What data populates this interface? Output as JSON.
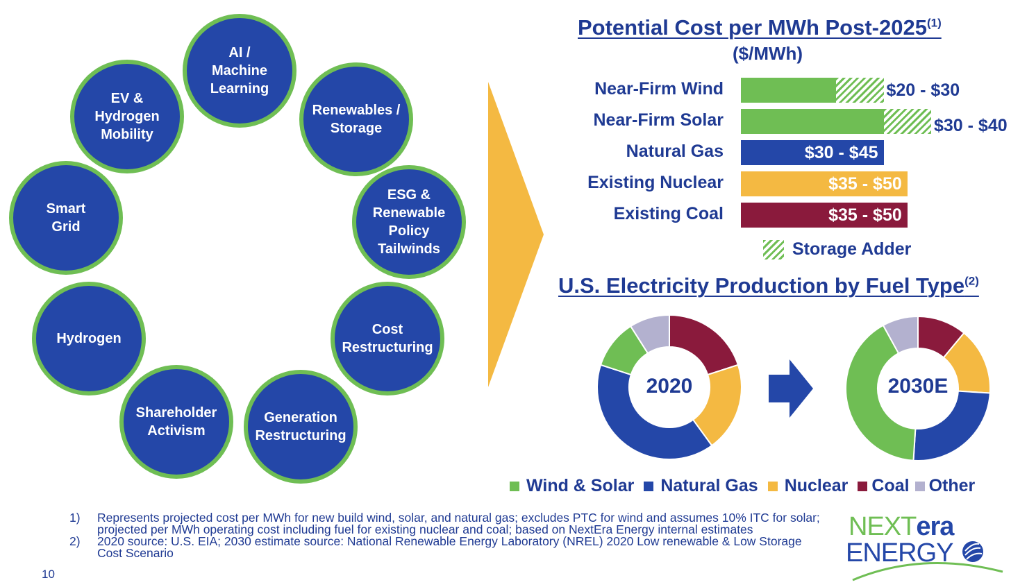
{
  "drivers": [
    {
      "label": "AI /\nMachine\nLearning"
    },
    {
      "label": "Renewables /\nStorage"
    },
    {
      "label": "ESG &\nRenewable\nPolicy\nTailwinds"
    },
    {
      "label": "Cost\nRestructuring"
    },
    {
      "label": "Generation\nRestructuring"
    },
    {
      "label": "Shareholder\nActivism"
    },
    {
      "label": "Hydrogen"
    },
    {
      "label": "Smart\nGrid"
    },
    {
      "label": "EV &\nHydrogen\nMobility"
    }
  ],
  "cost_chart": {
    "title": "Potential Cost per MWh Post-2025",
    "title_sup": "(1)",
    "subtitle": "($/MWh)",
    "legend_storage": "Storage Adder",
    "colors": {
      "wind_solar": "#6fbe54",
      "gas": "#2447a8",
      "nuclear": "#f4b942",
      "coal": "#8a1a3c"
    }
  },
  "fuel_chart": {
    "title": "U.S. Electricity Production by Fuel Type",
    "title_sup": "(2)",
    "legend": [
      {
        "name": "Wind & Solar",
        "color": "#6fbe54"
      },
      {
        "name": "Natural Gas",
        "color": "#2447a8"
      },
      {
        "name": "Nuclear",
        "color": "#f4b942"
      },
      {
        "name": "Coal",
        "color": "#8a1a3c"
      },
      {
        "name": "Other",
        "color": "#b3b1cf"
      }
    ]
  },
  "chart_data": [
    {
      "type": "bar",
      "orientation": "horizontal",
      "title": "Potential Cost per MWh Post-2025(1)",
      "subtitle": "($/MWh)",
      "categories": [
        "Near-Firm Wind",
        "Near-Firm Solar",
        "Natural Gas",
        "Existing Nuclear",
        "Existing Coal"
      ],
      "labels": [
        "$20 - $30",
        "$30 - $40",
        "$30 - $45",
        "$35 - $50",
        "$35 - $50"
      ],
      "base_values": [
        20,
        30,
        30,
        35,
        35
      ],
      "storage_adder": [
        10,
        10,
        0,
        0,
        0
      ],
      "totals": [
        30,
        40,
        45,
        50,
        50
      ],
      "xlim": [
        0,
        50
      ],
      "legend": [
        "Storage Adder"
      ]
    },
    {
      "type": "pie",
      "title": "2020",
      "categories": [
        "Coal",
        "Nuclear",
        "Natural Gas",
        "Wind & Solar",
        "Other"
      ],
      "values": [
        20,
        20,
        40,
        11,
        9
      ]
    },
    {
      "type": "pie",
      "title": "2030E",
      "categories": [
        "Coal",
        "Nuclear",
        "Natural Gas",
        "Wind & Solar",
        "Other"
      ],
      "values": [
        11,
        15,
        25,
        41,
        8
      ]
    }
  ],
  "footnotes": [
    {
      "num": "1)",
      "text": "Represents projected cost per MWh for new build wind, solar, and natural gas; excludes PTC for wind and assumes 10% ITC for solar; projected per MWh operating cost including fuel for existing nuclear and coal; based on NextEra Energy internal estimates"
    },
    {
      "num": "2)",
      "text": "2020 source: U.S. EIA; 2030 estimate source: National Renewable Energy Laboratory (NREL) 2020 Low renewable & Low Storage Cost Scenario"
    }
  ],
  "page_number": "10",
  "logo": {
    "line1_a": "NEXT",
    "line1_b": "era",
    "line2": "ENERGY"
  }
}
